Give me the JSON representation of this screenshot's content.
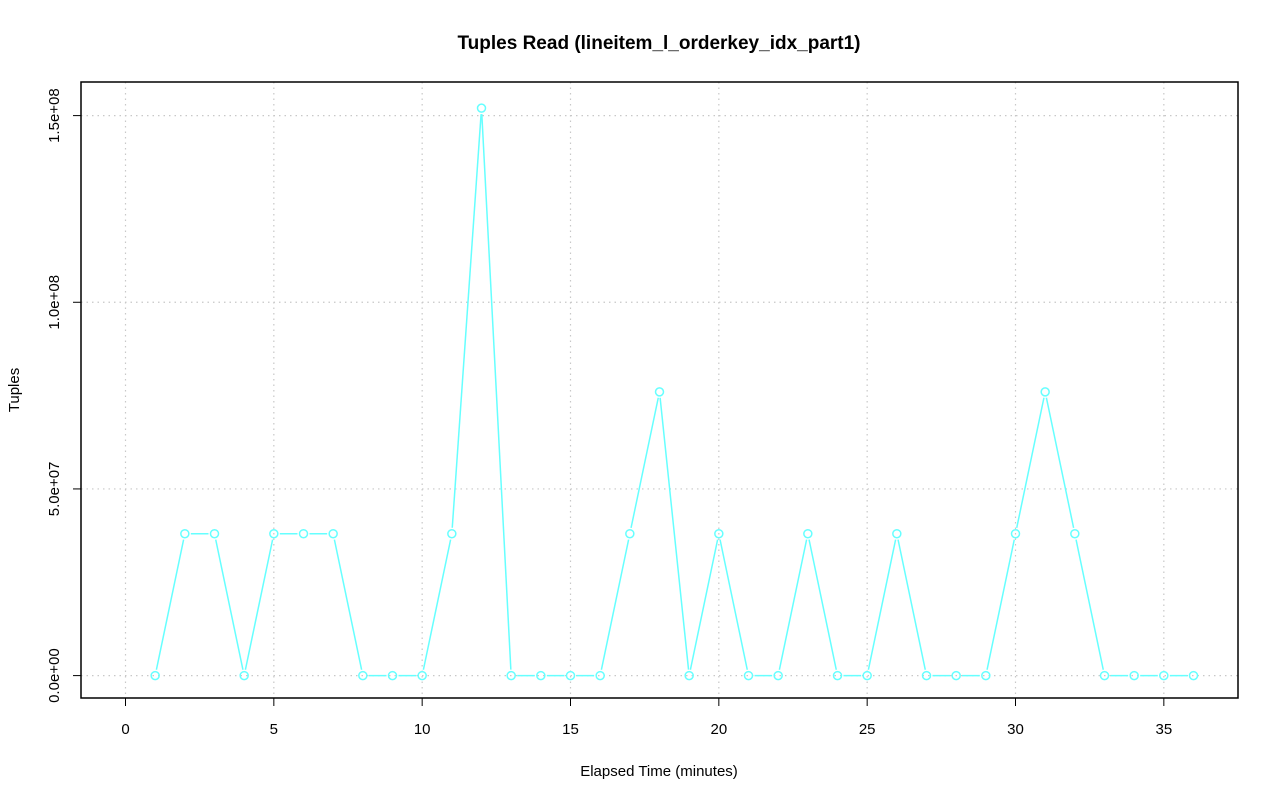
{
  "chart_data": {
    "type": "line",
    "title": "Tuples Read (lineitem_l_orderkey_idx_part1)",
    "xlabel": "Elapsed Time (minutes)",
    "ylabel": "Tuples",
    "xlim": [
      -1.5,
      37.5
    ],
    "ylim": [
      -6000000,
      159000000
    ],
    "x_ticks": [
      0,
      5,
      10,
      15,
      20,
      25,
      30,
      35
    ],
    "x_tick_labels": [
      "0",
      "5",
      "10",
      "15",
      "20",
      "25",
      "30",
      "35"
    ],
    "y_ticks": [
      0,
      50000000,
      100000000,
      150000000
    ],
    "y_tick_labels": [
      "0.0e+00",
      "5.0e+07",
      "1.0e+08",
      "1.5e+08"
    ],
    "grid": true,
    "grid_style": "dotted",
    "line_color": "#66ffff",
    "series": [
      {
        "x": [
          1,
          2,
          3,
          4,
          5,
          6,
          7,
          8,
          9,
          10,
          11,
          12,
          13,
          14,
          15,
          16,
          17,
          18,
          19,
          20,
          21,
          22,
          23,
          24,
          25,
          26,
          27,
          28,
          29,
          30,
          31,
          32,
          33,
          34,
          35,
          36
        ],
        "values": [
          0,
          38000000,
          38000000,
          0,
          38000000,
          38000000,
          38000000,
          0,
          0,
          0,
          38000000,
          152000000,
          0,
          0,
          0,
          0,
          38000000,
          76000000,
          0,
          38000000,
          0,
          0,
          38000000,
          0,
          0,
          38000000,
          0,
          0,
          0,
          38000000,
          76000000,
          38000000,
          0,
          0,
          0,
          0
        ]
      }
    ]
  }
}
